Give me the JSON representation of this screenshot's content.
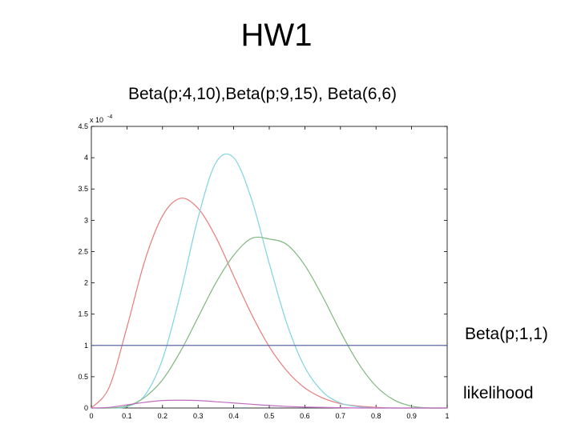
{
  "slide": {
    "title": "HW1",
    "subtitle": "Beta(p;4,10),Beta(p;9,15), Beta(6,6)",
    "annotations": [
      "Beta(p;1,1)",
      "likelihood"
    ]
  },
  "chart_data": {
    "type": "line",
    "title": "",
    "xlabel": "",
    "ylabel": "",
    "xlim": [
      0,
      1
    ],
    "ylim": [
      0,
      4.5
    ],
    "y_scale_multiplier": "x 10",
    "y_scale_exponent": "-4",
    "xticks": [
      "0",
      "0.1",
      "0.2",
      "0.3",
      "0.4",
      "0.5",
      "0.6",
      "0.7",
      "0.8",
      "0.9",
      "1"
    ],
    "yticks": [
      "0",
      "0.5",
      "1",
      "1.5",
      "2",
      "2.5",
      "3",
      "3.5",
      "4",
      "4.5"
    ],
    "grid": false,
    "series": [
      {
        "color": "#e87c7c",
        "x": [
          0,
          0.05,
          0.1,
          0.15,
          0.2,
          0.25,
          0.3,
          0.35,
          0.4,
          0.45,
          0.5,
          0.55,
          0.6,
          0.65,
          0.7,
          0.75,
          0.8,
          0.85,
          0.9,
          0.95,
          1
        ],
        "y": [
          0,
          0.33,
          1.29,
          2.35,
          3.07,
          3.35,
          3.19,
          2.73,
          2.11,
          1.5,
          0.98,
          0.59,
          0.32,
          0.16,
          0.07,
          0.03,
          0.01,
          0,
          0,
          0,
          0
        ]
      },
      {
        "color": "#7fd3e3",
        "x": [
          0,
          0.05,
          0.1,
          0.15,
          0.2,
          0.25,
          0.3,
          0.35,
          0.4,
          0.45,
          0.5,
          0.55,
          0.6,
          0.65,
          0.7,
          0.75,
          0.8,
          0.85,
          0.9,
          0.95,
          1
        ],
        "y": [
          0,
          0,
          0.02,
          0.2,
          0.78,
          1.82,
          3.04,
          3.92,
          4.0,
          3.34,
          2.31,
          1.34,
          0.65,
          0.26,
          0.08,
          0.02,
          0,
          0,
          0,
          0,
          0
        ]
      },
      {
        "color": "#7fb87f",
        "x": [
          0,
          0.05,
          0.1,
          0.15,
          0.2,
          0.25,
          0.3,
          0.35,
          0.4,
          0.45,
          0.5,
          0.55,
          0.6,
          0.65,
          0.7,
          0.75,
          0.8,
          0.85,
          0.9,
          0.95,
          1
        ],
        "y": [
          0,
          0,
          0.03,
          0.17,
          0.45,
          0.9,
          1.45,
          2.0,
          2.44,
          2.71,
          2.7,
          2.61,
          2.28,
          1.78,
          1.22,
          0.72,
          0.35,
          0.13,
          0.03,
          0,
          0
        ]
      },
      {
        "color": "#5b6aa8",
        "x": [
          0,
          1
        ],
        "y": [
          1,
          1
        ]
      },
      {
        "color": "#c06cc0",
        "x": [
          0,
          0.05,
          0.1,
          0.15,
          0.2,
          0.25,
          0.3,
          0.35,
          0.4,
          0.45,
          0.5,
          0.55,
          0.6,
          0.65,
          0.7,
          0.75,
          0.8,
          0.85,
          0.9,
          0.95,
          1
        ],
        "y": [
          0,
          0.01,
          0.05,
          0.09,
          0.12,
          0.125,
          0.12,
          0.1,
          0.08,
          0.06,
          0.04,
          0.025,
          0.015,
          0.01,
          0.005,
          0,
          0,
          0,
          0,
          0,
          0
        ]
      }
    ]
  }
}
